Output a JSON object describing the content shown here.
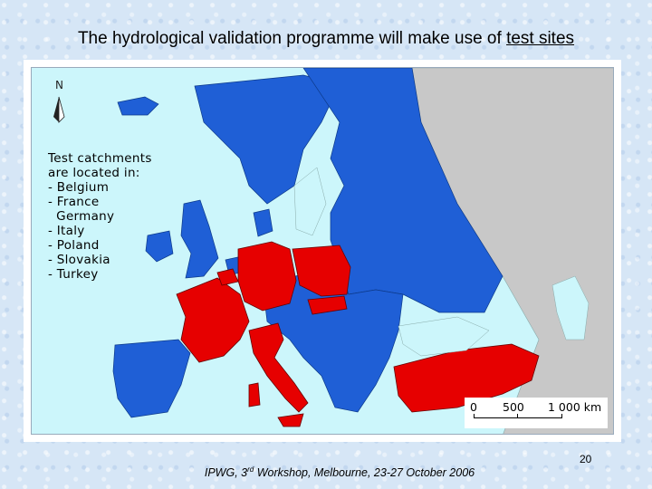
{
  "slide": {
    "title_prefix": "The hydrological validation programme will make use of ",
    "title_link": "test sites",
    "page_number": "20",
    "footer_before": "IPWG, 3",
    "footer_sup": "rd",
    "footer_after": " Workshop, Melbourne, 23-27 October 2006"
  },
  "map": {
    "north_label": "N",
    "legend_heading_line1": "Test catchments",
    "legend_heading_line2": "are located in:",
    "legend_items": [
      "- Belgium",
      "- France",
      "  Germany",
      "- Italy",
      "- Poland",
      "- Slovakia",
      "- Turkey"
    ],
    "scale_labels": [
      "0",
      "500",
      "1 000 km"
    ],
    "colors": {
      "sea": "#ccf6fb",
      "participating": "#1f5fd6",
      "test_catchment": "#e60000",
      "outside": "#c8c8c8"
    }
  }
}
